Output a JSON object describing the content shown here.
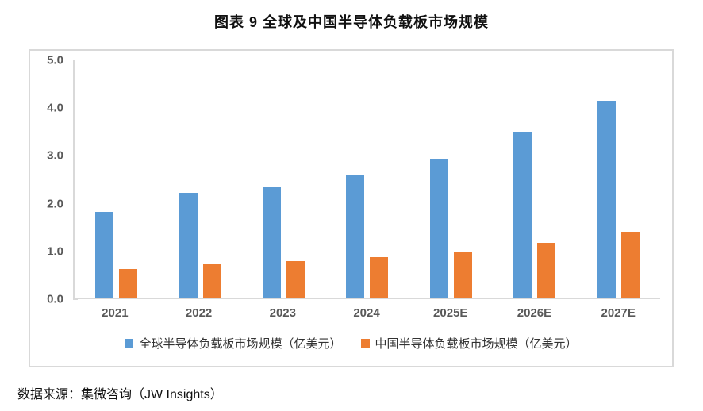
{
  "title": "图表 9 全球及中国半导体负载板市场规模",
  "source": "数据来源：集微咨询（JW Insights）",
  "colors": {
    "global_series": "#5B9BD5",
    "china_series": "#ED7D31",
    "axis_line": "#D9D9D9",
    "tick_text": "#595959"
  },
  "chart_data": {
    "type": "bar",
    "title": "图表 9 全球及中国半导体负载板市场规模",
    "categories": [
      "2021",
      "2022",
      "2023",
      "2024",
      "2025E",
      "2026E",
      "2027E"
    ],
    "series": [
      {
        "name": "全球半导体负载板市场规模（亿美元）",
        "color": "#5B9BD5",
        "values": [
          1.8,
          2.2,
          2.33,
          2.6,
          2.93,
          3.5,
          4.15
        ]
      },
      {
        "name": "中国半导体负载板市场规模（亿美元）",
        "color": "#ED7D31",
        "values": [
          0.61,
          0.71,
          0.77,
          0.86,
          0.97,
          1.15,
          1.37
        ]
      }
    ],
    "xlabel": "",
    "ylabel": "",
    "ylim": [
      0,
      5
    ],
    "yticks": [
      {
        "label": "5.0",
        "value": 5
      },
      {
        "label": "4.0",
        "value": 4
      },
      {
        "label": "3.0",
        "value": 3
      },
      {
        "label": "2.0",
        "value": 2
      },
      {
        "label": "1.0",
        "value": 1
      },
      {
        "label": "0.0",
        "value": 0
      }
    ],
    "grid": false,
    "legend_position": "bottom"
  }
}
